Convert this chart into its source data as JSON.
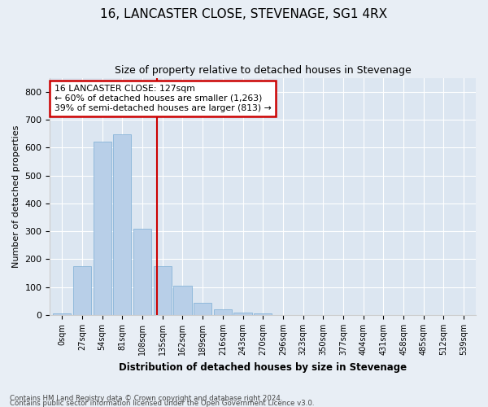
{
  "title": "16, LANCASTER CLOSE, STEVENAGE, SG1 4RX",
  "subtitle": "Size of property relative to detached houses in Stevenage",
  "xlabel": "Distribution of detached houses by size in Stevenage",
  "ylabel": "Number of detached properties",
  "bin_labels": [
    "0sqm",
    "27sqm",
    "54sqm",
    "81sqm",
    "108sqm",
    "135sqm",
    "162sqm",
    "189sqm",
    "216sqm",
    "243sqm",
    "270sqm",
    "296sqm",
    "323sqm",
    "350sqm",
    "377sqm",
    "404sqm",
    "431sqm",
    "458sqm",
    "485sqm",
    "512sqm",
    "539sqm"
  ],
  "bar_values": [
    5,
    175,
    620,
    648,
    310,
    175,
    105,
    45,
    20,
    10,
    5,
    1,
    0,
    0,
    1,
    0,
    0,
    0,
    0,
    0,
    0
  ],
  "bar_color": "#b8cfe8",
  "bar_edge_color": "#7aadd4",
  "background_color": "#dce6f1",
  "grid_color": "#ffffff",
  "vline_x": 4.74,
  "vline_color": "#cc0000",
  "annotation_text": "16 LANCASTER CLOSE: 127sqm\n← 60% of detached houses are smaller (1,263)\n39% of semi-detached houses are larger (813) →",
  "annotation_box_color": "#ffffff",
  "annotation_box_edge": "#cc0000",
  "ylim": [
    0,
    850
  ],
  "yticks": [
    0,
    100,
    200,
    300,
    400,
    500,
    600,
    700,
    800
  ],
  "fig_facecolor": "#e8eef5",
  "footer1": "Contains HM Land Registry data © Crown copyright and database right 2024.",
  "footer2": "Contains public sector information licensed under the Open Government Licence v3.0."
}
